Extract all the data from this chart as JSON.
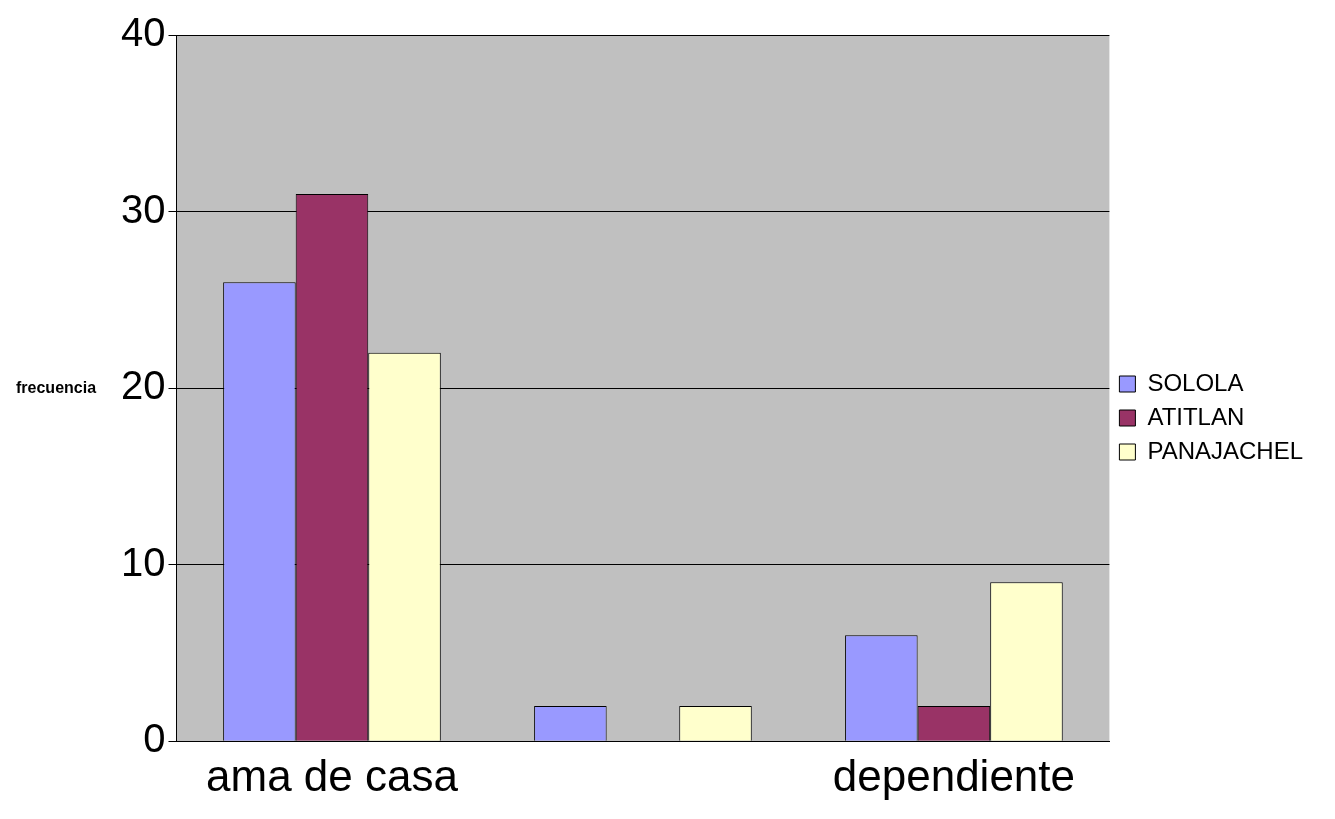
{
  "chart_data": {
    "type": "bar",
    "ylabel": "frecuencia",
    "categories": [
      "ama de casa",
      null,
      "dependiente"
    ],
    "series": [
      {
        "name": "SOLOLA",
        "color": "#9999ff",
        "values": [
          26,
          2,
          6
        ]
      },
      {
        "name": "ATITLAN",
        "color": "#993366",
        "values": [
          31,
          0,
          2
        ]
      },
      {
        "name": "PANAJACHEL",
        "color": "#ffffcc",
        "values": [
          22,
          2,
          9
        ]
      }
    ],
    "ylim": [
      0,
      40
    ],
    "yticks": [
      0,
      10,
      20,
      30,
      40
    ],
    "grid": "y",
    "legend": "right"
  }
}
